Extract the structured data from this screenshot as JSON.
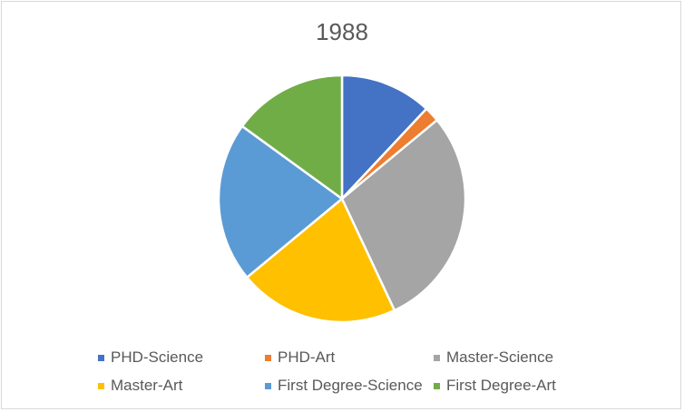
{
  "chart_data": {
    "type": "pie",
    "title": "1988",
    "legend_position": "bottom",
    "slices": [
      {
        "label": "PHD-Science",
        "value": 12,
        "color": "#4472C4"
      },
      {
        "label": "PHD-Art",
        "value": 2,
        "color": "#ED7D31"
      },
      {
        "label": "Master-Science",
        "value": 29,
        "color": "#A5A5A5"
      },
      {
        "label": "Master-Art",
        "value": 21,
        "color": "#FFC000"
      },
      {
        "label": "First Degree-Science",
        "value": 21,
        "color": "#5B9BD5"
      },
      {
        "label": "First Degree-Art",
        "value": 15,
        "color": "#70AD47"
      }
    ]
  }
}
